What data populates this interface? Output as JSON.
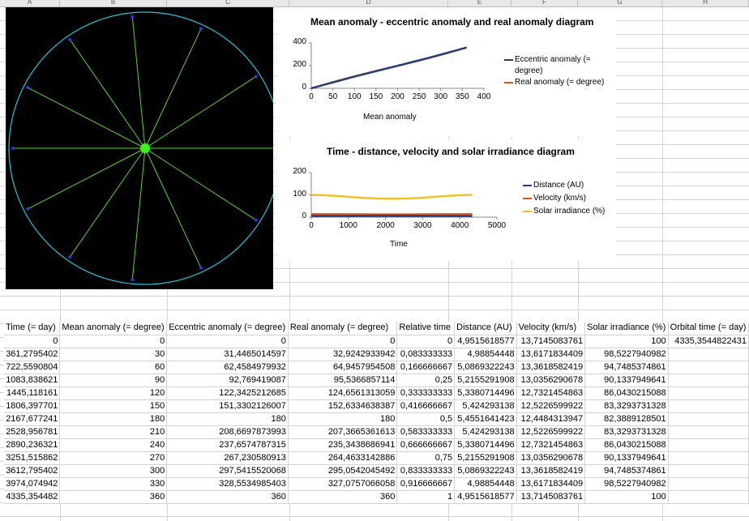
{
  "columns": [
    "A",
    "B",
    "C",
    "D",
    "E",
    "F",
    "G",
    "H",
    "I"
  ],
  "selected_column": "I",
  "chart1": {
    "title": "Mean anomaly - eccentric anomaly and real anomaly diagram",
    "xlabel": "Mean anomaly",
    "xticks": [
      "0",
      "50",
      "100",
      "150",
      "200",
      "250",
      "300",
      "350",
      "400"
    ],
    "yticks": [
      "0",
      "200",
      "400"
    ],
    "legend": [
      {
        "name": "Eccentric anomaly (= degree)",
        "color": "#1f3f78"
      },
      {
        "name": "Real anomaly (= degree)",
        "color": "#e0501a"
      }
    ]
  },
  "chart2": {
    "title": "Time - distance, velocity and solar irradiance diagram",
    "xlabel": "Time",
    "xticks": [
      "0",
      "1000",
      "2000",
      "3000",
      "4000",
      "5000"
    ],
    "yticks": [
      "0",
      "100",
      "200"
    ],
    "legend": [
      {
        "name": "Distance (AU)",
        "color": "#1f3f78"
      },
      {
        "name": "Velocity (km/s)",
        "color": "#e0501a"
      },
      {
        "name": "Solar irradiance (%)",
        "color": "#f2c01e"
      }
    ]
  },
  "chart_data": [
    {
      "type": "line",
      "title": "Mean anomaly - eccentric anomaly and real anomaly diagram",
      "xlabel": "Mean anomaly",
      "ylabel": "",
      "xlim": [
        0,
        400
      ],
      "ylim": [
        0,
        400
      ],
      "x": [
        0,
        30,
        60,
        90,
        120,
        150,
        180,
        210,
        240,
        270,
        300,
        330,
        360
      ],
      "series": [
        {
          "name": "Eccentric anomaly (= degree)",
          "values": [
            0,
            31.4465014597,
            62.4584979932,
            92.769419087,
            122.3425212685,
            151.3302126007,
            180,
            208.6697873993,
            237.6574787315,
            267.230580913,
            297.5415520068,
            328.5534985403,
            360
          ]
        },
        {
          "name": "Real anomaly (= degree)",
          "values": [
            0,
            32.9242933942,
            64.9457954508,
            95.5366857114,
            124.6561313059,
            152.6334638387,
            180,
            207.3665361613,
            235.3438686941,
            264.4633142886,
            295.0542045492,
            327.0757066058,
            360
          ]
        }
      ],
      "legend_position": "right"
    },
    {
      "type": "line",
      "title": "Time - distance, velocity and solar irradiance diagram",
      "xlabel": "Time",
      "ylabel": "",
      "xlim": [
        0,
        5000
      ],
      "ylim": [
        0,
        200
      ],
      "x": [
        0,
        361.2795402,
        722.5590804,
        1083.838621,
        1445.118161,
        1806.397701,
        2167.677241,
        2528.956781,
        2890.236321,
        3251.515862,
        3612.795402,
        3974.074942,
        4335.354482
      ],
      "series": [
        {
          "name": "Distance (AU)",
          "values": [
            4.9515618577,
            4.98854448,
            5.0869322243,
            5.2155291908,
            5.3380714496,
            5.424293138,
            5.4551641423,
            5.424293138,
            5.3380714496,
            5.2155291908,
            5.0869322243,
            4.98854448,
            4.9515618577
          ]
        },
        {
          "name": "Velocity (km/s)",
          "values": [
            13.7145083761,
            13.6171834409,
            13.3618582419,
            13.0356290678,
            12.7321454863,
            12.5226599922,
            12.4484313947,
            12.5226599922,
            12.7321454863,
            13.0356290678,
            13.3618582419,
            13.6171834409,
            13.7145083761
          ]
        },
        {
          "name": "Solar irradiance (%)",
          "values": [
            100,
            98.5227940982,
            94.7485374861,
            90.1337949641,
            86.0430215088,
            83.3293731328,
            82.3889128501,
            83.3293731328,
            86.0430215088,
            90.1337949641,
            94.7485374861,
            98.5227940982,
            100
          ]
        }
      ],
      "legend_position": "right"
    }
  ],
  "table": {
    "headers": [
      "Time (= day)",
      "Mean anomaly (= degree)",
      "Eccentric anomaly (= degree)",
      "Real anomaly (= degree)",
      "Relative time",
      "Distance (AU)",
      "Velocity (km/s)",
      "Solar irradiance (%)",
      "Orbital time (= day)"
    ],
    "rows": [
      [
        "0",
        "0",
        "0",
        "0",
        "0",
        "4,9515618577",
        "13,7145083761",
        "100",
        "4335,3544822431"
      ],
      [
        "361,2795402",
        "30",
        "31,4465014597",
        "32,9242933942",
        "0,083333333",
        "4,98854448",
        "13,6171834409",
        "98,5227940982",
        ""
      ],
      [
        "722,5590804",
        "60",
        "62,4584979932",
        "64,9457954508",
        "0,166666667",
        "5,0869322243",
        "13,3618582419",
        "94,7485374861",
        ""
      ],
      [
        "1083,838621",
        "90",
        "92,769419087",
        "95,5366857114",
        "0,25",
        "5,2155291908",
        "13,0356290678",
        "90,1337949641",
        ""
      ],
      [
        "1445,118161",
        "120",
        "122,3425212685",
        "124,6561313059",
        "0,333333333",
        "5,3380714496",
        "12,7321454863",
        "86,0430215088",
        ""
      ],
      [
        "1806,397701",
        "150",
        "151,3302126007",
        "152,6334638387",
        "0,416666667",
        "5,424293138",
        "12,5226599922",
        "83,3293731328",
        ""
      ],
      [
        "2167,677241",
        "180",
        "180",
        "180",
        "0,5",
        "5,4551641423",
        "12,4484313947",
        "82,3889128501",
        ""
      ],
      [
        "2528,956781",
        "210",
        "208,6697873993",
        "207,3665361613",
        "0,583333333",
        "5,424293138",
        "12,5226599922",
        "83,3293731328",
        ""
      ],
      [
        "2890,236321",
        "240",
        "237,6574787315",
        "235,3438686941",
        "0,666666667",
        "5,3380714496",
        "12,7321454863",
        "86,0430215088",
        ""
      ],
      [
        "3251,515862",
        "270",
        "267,230580913",
        "264,4633142886",
        "0,75",
        "5,2155291908",
        "13,0356290678",
        "90,1337949641",
        ""
      ],
      [
        "3612,795402",
        "300",
        "297,5415520068",
        "295,0542045492",
        "0,833333333",
        "5,0869322243",
        "13,3618582419",
        "94,7485374861",
        ""
      ],
      [
        "3974,074942",
        "330",
        "328,5534985403",
        "327,0757066058",
        "0,916666667",
        "4,98854448",
        "13,6171834409",
        "98,5227940982",
        ""
      ],
      [
        "4335,354482",
        "360",
        "360",
        "360",
        "1",
        "4,9515618577",
        "13,7145083761",
        "100",
        ""
      ]
    ]
  },
  "colors": {
    "orbit_bg": "#000000",
    "orbit_circle": "#22c4d8",
    "spoke": "#5fd42a",
    "center_dot": "#3cf21a",
    "point": "#1f3fd8"
  }
}
